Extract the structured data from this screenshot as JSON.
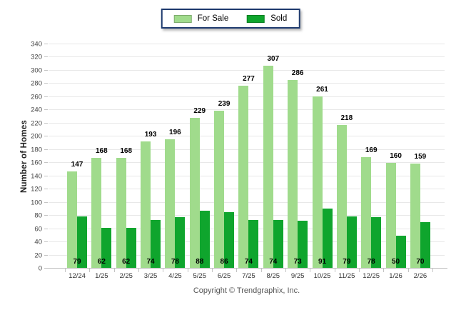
{
  "legend": {
    "items": [
      {
        "label": "For Sale",
        "color": "#A0DB8C"
      },
      {
        "label": "Sold",
        "color": "#0FA52D"
      }
    ]
  },
  "footer": "Copyright © Trendgraphix, Inc.",
  "chart_data": {
    "type": "bar",
    "categories": [
      "12/24",
      "1/25",
      "2/25",
      "3/25",
      "4/25",
      "5/25",
      "6/25",
      "7/25",
      "8/25",
      "9/25",
      "10/25",
      "11/25",
      "12/25",
      "1/26",
      "2/26"
    ],
    "series": [
      {
        "name": "For Sale",
        "color": "#A0DB8C",
        "values": [
          147,
          168,
          168,
          193,
          196,
          229,
          239,
          277,
          307,
          286,
          261,
          218,
          169,
          160,
          159
        ]
      },
      {
        "name": "Sold",
        "color": "#0FA52D",
        "values": [
          79,
          62,
          62,
          74,
          78,
          88,
          86,
          74,
          74,
          73,
          91,
          79,
          78,
          50,
          70
        ]
      }
    ],
    "title": "",
    "xlabel": "",
    "ylabel": "Number of Homes",
    "ylim": [
      0,
      340
    ],
    "y_ticks": [
      0,
      20,
      40,
      60,
      80,
      100,
      120,
      140,
      160,
      180,
      200,
      220,
      240,
      260,
      280,
      300,
      320,
      340
    ],
    "grid": true,
    "legend_position": "top-center",
    "styles": {
      "gridline_color": "#E8E8E8",
      "axis_color": "#BDBDBD",
      "value_label_color": "#000000",
      "tick_label_color": "#444444",
      "legend_border_color": "#1E3A6E"
    }
  }
}
